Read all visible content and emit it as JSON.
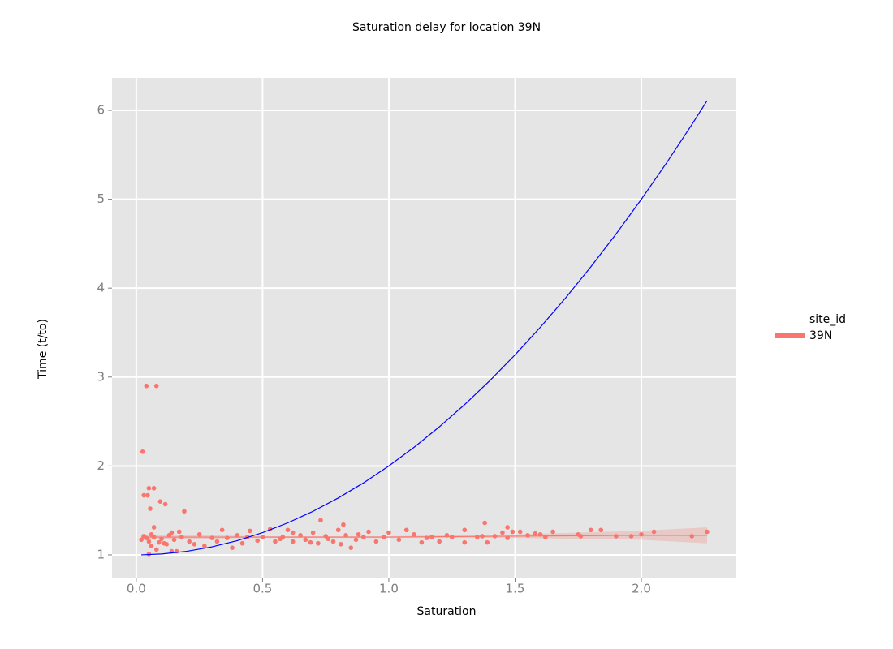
{
  "chart_data": {
    "type": "scatter",
    "title": "Saturation delay for location 39N",
    "xlabel": "Saturation",
    "ylabel": "Time (t/to)",
    "xlim": [
      -0.096,
      2.376
    ],
    "ylim": [
      0.735,
      6.365
    ],
    "xticks": [
      {
        "value": 0,
        "label": "0.0"
      },
      {
        "value": 0.5,
        "label": "0.5"
      },
      {
        "value": 1,
        "label": "1.0"
      },
      {
        "value": 1.5,
        "label": "1.5"
      },
      {
        "value": 2,
        "label": "2.0"
      }
    ],
    "yticks": [
      1,
      2,
      3,
      4,
      5,
      6
    ],
    "grid": true,
    "legend": {
      "title": "site_id",
      "position": "right"
    },
    "series": [
      {
        "type": "scatter",
        "name": "39N",
        "color": "#f8766d",
        "x": [
          0.04,
          0.08,
          0.025,
          0.03,
          0.045,
          0.05,
          0.07,
          0.055,
          0.095,
          0.115,
          0.19,
          0.05,
          0.14,
          0.16,
          0.08,
          0.07,
          0.73,
          0.82,
          1.38,
          2.26,
          2.2,
          2.05,
          2.0,
          1.96,
          1.9,
          1.84,
          1.8,
          1.76,
          1.75,
          1.65,
          1.62,
          1.58,
          1.55,
          1.52,
          1.49,
          1.47,
          1.45,
          1.42,
          1.39,
          1.35,
          1.3,
          1.3,
          1.25,
          1.23,
          1.2,
          1.17,
          1.13,
          1.1,
          1.07,
          1.04,
          1.0,
          0.98,
          0.95,
          0.92,
          0.9,
          0.87,
          0.85,
          0.83,
          0.8,
          0.78,
          0.75,
          0.72,
          0.7,
          0.67,
          0.65,
          0.62,
          0.6,
          0.58,
          0.55,
          0.53,
          0.5,
          0.48,
          0.45,
          0.42,
          0.4,
          0.38,
          0.36,
          0.34,
          0.32,
          0.3,
          0.27,
          0.25,
          0.23,
          0.21,
          0.18,
          0.17,
          0.15,
          0.13,
          0.12,
          0.1,
          0.09,
          0.07,
          0.06,
          0.05,
          0.04,
          0.03,
          0.02,
          0.06,
          0.11,
          0.14,
          0.44,
          0.62,
          0.76,
          0.88,
          0.69,
          0.57,
          0.81,
          1.15,
          1.37,
          1.47,
          1.6
        ],
        "values": [
          2.9,
          2.9,
          2.16,
          1.67,
          1.67,
          1.75,
          1.75,
          1.52,
          1.6,
          1.57,
          1.49,
          1.01,
          1.04,
          1.04,
          1.06,
          1.31,
          1.39,
          1.34,
          1.36,
          1.26,
          1.21,
          1.26,
          1.23,
          1.21,
          1.21,
          1.28,
          1.28,
          1.21,
          1.23,
          1.26,
          1.2,
          1.24,
          1.22,
          1.26,
          1.26,
          1.31,
          1.25,
          1.21,
          1.14,
          1.2,
          1.28,
          1.14,
          1.2,
          1.22,
          1.15,
          1.2,
          1.14,
          1.23,
          1.28,
          1.17,
          1.25,
          1.2,
          1.15,
          1.26,
          1.2,
          1.17,
          1.08,
          1.22,
          1.28,
          1.15,
          1.21,
          1.13,
          1.25,
          1.17,
          1.22,
          1.15,
          1.28,
          1.2,
          1.15,
          1.29,
          1.2,
          1.16,
          1.27,
          1.13,
          1.22,
          1.08,
          1.19,
          1.28,
          1.15,
          1.19,
          1.1,
          1.23,
          1.12,
          1.15,
          1.2,
          1.26,
          1.17,
          1.22,
          1.12,
          1.18,
          1.14,
          1.2,
          1.23,
          1.15,
          1.19,
          1.21,
          1.17,
          1.1,
          1.13,
          1.25,
          1.2,
          1.25,
          1.18,
          1.23,
          1.14,
          1.18,
          1.12,
          1.19,
          1.21,
          1.19,
          1.23
        ]
      },
      {
        "type": "smooth",
        "color": "#f8766d",
        "x": [
          0.02,
          0.5,
          1.0,
          1.5,
          2.0,
          2.26
        ],
        "values": [
          1.2,
          1.2,
          1.2,
          1.21,
          1.22,
          1.22
        ],
        "lower": [
          1.17,
          1.19,
          1.19,
          1.19,
          1.17,
          1.13
        ],
        "upper": [
          1.23,
          1.21,
          1.21,
          1.23,
          1.27,
          1.31
        ]
      },
      {
        "type": "line",
        "color": "#0000ff",
        "x": [
          0.02,
          0.1,
          0.2,
          0.3,
          0.4,
          0.5,
          0.6,
          0.7,
          0.8,
          0.9,
          1.0,
          1.1,
          1.2,
          1.3,
          1.4,
          1.5,
          1.6,
          1.7,
          1.8,
          1.9,
          2.0,
          2.1,
          2.2,
          2.26
        ],
        "values": [
          1.0004,
          1.01,
          1.04,
          1.09,
          1.16,
          1.25,
          1.36,
          1.49,
          1.64,
          1.81,
          2.0,
          2.21,
          2.44,
          2.69,
          2.96,
          3.25,
          3.56,
          3.89,
          4.24,
          4.61,
          5.0,
          5.41,
          5.84,
          6.1076
        ]
      }
    ]
  }
}
